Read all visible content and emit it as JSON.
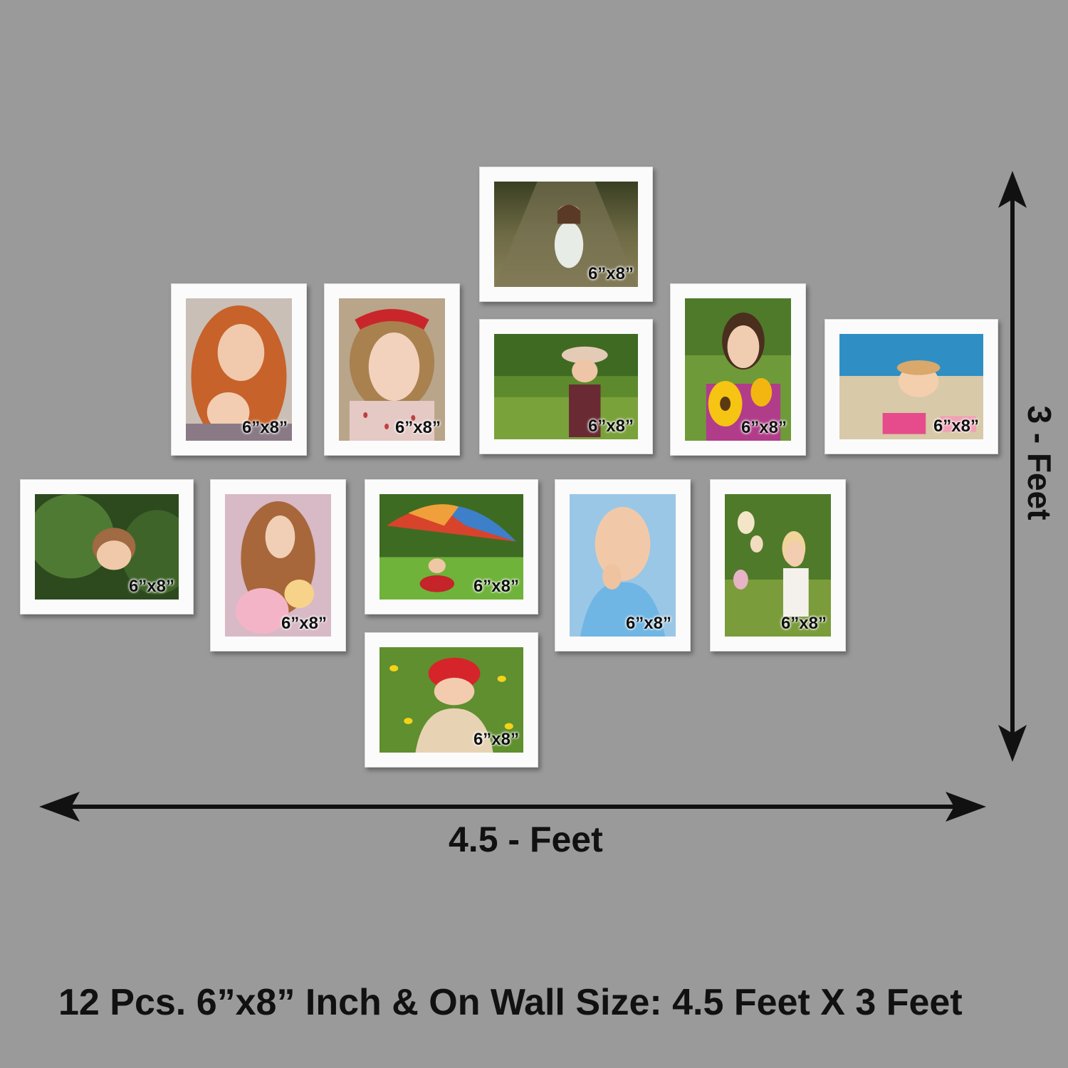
{
  "frames": [
    {
      "id": "top-center",
      "label": "6”x8”",
      "scene": "girl kneeling on cobblestone path"
    },
    {
      "id": "row1-1",
      "label": "6”x8”",
      "scene": "red-haired girl portrait"
    },
    {
      "id": "row1-2",
      "label": "6”x8”",
      "scene": "girl with red polka-dot bow"
    },
    {
      "id": "row1-3",
      "label": "6”x8”",
      "scene": "girl in hat in green field"
    },
    {
      "id": "row1-4",
      "label": "6”x8”",
      "scene": "girl holding sunflowers"
    },
    {
      "id": "row1-5",
      "label": "6”x8”",
      "scene": "girl on beach"
    },
    {
      "id": "row2-1",
      "label": "6”x8”",
      "scene": "girl among green leaves"
    },
    {
      "id": "row2-2",
      "label": "6”x8”",
      "scene": "girl with long curly hair and flowers"
    },
    {
      "id": "row2-3",
      "label": "6”x8”",
      "scene": "girl under rainbow umbrella"
    },
    {
      "id": "row2-4",
      "label": "6”x8”",
      "scene": "baby in blue shirt"
    },
    {
      "id": "row2-5",
      "label": "6”x8”",
      "scene": "toddler reaching for blossoms"
    },
    {
      "id": "bottom",
      "label": "6”x8”",
      "scene": "toddler in red hat among daffodils"
    }
  ],
  "dimensions": {
    "width_label": "4.5 - Feet",
    "height_label": "3 - Feet"
  },
  "caption": "12 Pcs. 6”x8” Inch & On Wall Size:  4.5 Feet X 3 Feet",
  "colors": {
    "background": "#9a9a9a",
    "frame": "#fbfbfb",
    "text": "#111111"
  }
}
